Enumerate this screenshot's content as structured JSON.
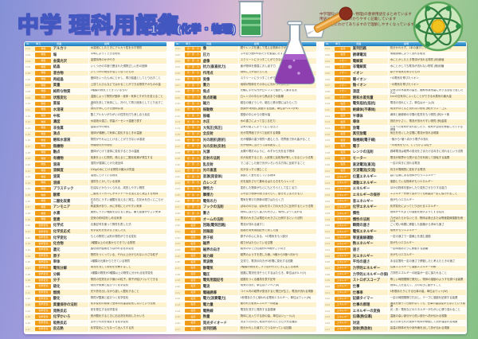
{
  "header": {
    "title": "中学 理科用語集",
    "subtitle": "1分野(化学・物理)",
    "blurb_lines": [
      "中学理科1分野(化学・物理)の重要用語をまとめています",
      "用語とその説明をわかりやすく記載しています",
      "単元ごとにわけてありますので理解しやすくなっています"
    ]
  },
  "illustrations": [
    "beaker-green-liquid-icon",
    "erlenmeyer-flask-purple-icon",
    "dropper-syringe-icon",
    "atom-model-icon"
  ],
  "colors": {
    "accent_blue": "#1b79bd",
    "badge_orange": "#f09c17",
    "row_cream": "#fdf2cc",
    "title_stroke": "#4257bf",
    "blurb_text": "#7c3226"
  },
  "table": {
    "col_header": [
      "№",
      "単元",
      "用語",
      "説明"
    ],
    "columns": [
      {
        "rows": [
          [
            "1-01",
            "物質",
            "アルカリ",
            "水溶液にしたときにアルカリ性を示す物質"
          ],
          [
            "1-02",
            "物質",
            "塩",
            "中和によってできる物質"
          ],
          [
            "1-03",
            "物質",
            "金属光沢",
            "金属特有のかがやき"
          ],
          [
            "1-04",
            "物質",
            "結晶",
            "いくつかの平面で囲まれた規則正しい形の固体"
          ],
          [
            "1-05",
            "物質",
            "混合物",
            "いくつかの物質が混じり合ったもの"
          ],
          [
            "1-06",
            "物質",
            "再結晶",
            "固体をいったん水にとかし、再び結晶としてとり出すこと"
          ],
          [
            "1-07",
            "物質",
            "質量",
            "上皿てんびんなどではかることができる物質そのものの量"
          ],
          [
            "1-08",
            "物質",
            "純粋な物質",
            "1種類の物質でできているもの"
          ],
          [
            "1-09",
            "物質",
            "状態変化",
            "温度によって物質が固体・液体・気体とすがたを変えること"
          ],
          [
            "1-10",
            "物質",
            "蒸留",
            "液体を熱して気体にし、冷やして再び液体としてとり出すこと"
          ],
          [
            "1-11",
            "物質",
            "水溶液",
            "物質が水にとけた透明な液"
          ],
          [
            "1-12",
            "物質",
            "中和",
            "酸とアルカリがたがいの性質を打ち消し合う反応"
          ],
          [
            "1-13",
            "物質",
            "濃度",
            "水溶液の濃さ。質量パーセント濃度で表す"
          ],
          [
            "1-14",
            "物質",
            "非金属",
            "金属以外の物質"
          ],
          [
            "1-15",
            "物質",
            "沸点",
            "液体が沸騰して気体に変化するときの温度"
          ],
          [
            "1-16",
            "物質",
            "飽和水溶液",
            "物質がそれ以上とけることができない水溶液"
          ],
          [
            "1-17",
            "物質",
            "無機物",
            "有機物以外の物質"
          ],
          [
            "1-18",
            "物質",
            "融点",
            "固体がとけて液体に変化するときの温度"
          ],
          [
            "1-19",
            "物質",
            "有機物",
            "炭素をふくむ物質。燃えると二酸化炭素が発生する"
          ],
          [
            "1-20",
            "物質",
            "溶液",
            "溶質が溶媒にとけた液全体"
          ],
          [
            "1-21",
            "物質",
            "溶解度",
            "100gの水にとける物質の最大の質量"
          ],
          [
            "1-22",
            "物質",
            "溶質",
            "溶液にとけている物質"
          ],
          [
            "1-23",
            "物質",
            "溶媒",
            "溶質をとかしている液体"
          ],
          [
            "1-24",
            "物質",
            "プラスチック",
            "石油などからつくられる、成形しやすい物質"
          ],
          [
            "1-25",
            "物質",
            "酸素",
            "二酸化マンガンにオキシドールを加えると発生する気体"
          ],
          [
            "1-26",
            "物質",
            "二酸化炭素",
            "石灰石にうすい塩酸を加えると発生。石灰水を白くにごらせる"
          ],
          [
            "1-27",
            "物質",
            "アンモニア",
            "刺激臭があり、水に非常にとけやすい気体"
          ],
          [
            "1-28",
            "物質",
            "水素",
            "亜鉛にうすい塩酸を加えると発生。最も密度が小さい気体"
          ],
          [
            "1-29",
            "物質",
            "窒素",
            "空気の約8割をしめる気体"
          ],
          [
            "1-30",
            "化学変化",
            "化学式",
            "元素記号を使って物質を表した式"
          ],
          [
            "1-31",
            "化学変化",
            "化学反応式",
            "化学変化を化学式で表した式"
          ],
          [
            "1-32",
            "化学変化",
            "化学変化",
            "もとの物質とは別の物質ができる変化"
          ],
          [
            "1-33",
            "化学変化",
            "化合物",
            "2種類以上の元素からできている物質"
          ],
          [
            "1-34",
            "化学変化",
            "還元",
            "酸化物が酸素をうばわれる化学変化"
          ],
          [
            "1-35",
            "化学変化",
            "原子",
            "物質をつくっている、それ以上分けられない小さな粒子"
          ],
          [
            "1-36",
            "化学変化",
            "単体",
            "1種類の元素からできている物質"
          ],
          [
            "1-37",
            "化学変化",
            "電気分解",
            "電流を流して物質を分解すること"
          ],
          [
            "1-38",
            "化学変化",
            "分解",
            "1種類の物質が2種類以上の物質に分かれる化学変化"
          ],
          [
            "1-39",
            "化学変化",
            "分子",
            "物質の性質を示す最小の粒子。原子が結びついてできる"
          ],
          [
            "1-40",
            "化学変化",
            "硫化",
            "物質が硫黄と結びつく化学変化"
          ],
          [
            "1-41",
            "化学変化",
            "燃焼",
            "光や熱を出しながら激しく酸化すること"
          ],
          [
            "1-42",
            "化学変化",
            "酸化",
            "物質が酸素と結びつく化学変化"
          ],
          [
            "1-43",
            "化学変化",
            "質量保存の法則",
            "化学変化の前後で全体の質量は変化しないという法則"
          ],
          [
            "1-44",
            "化学変化",
            "発熱反応",
            "熱を発生する化学変化"
          ],
          [
            "1-45",
            "化学変化",
            "化学かいろ",
            "鉄が酸化するときに出る熱を利用したかいろ"
          ],
          [
            "1-46",
            "化学変化",
            "吸熱反応",
            "まわりの熱を吸収する化学変化"
          ],
          [
            "1-47",
            "化学変化",
            "反応熱",
            "化学変化にともなって出入りする熱"
          ]
        ]
      },
      {
        "rows": [
          [
            "2-01",
            "光・音・力",
            "像",
            "鏡やレンズを通して見える物体のすがた"
          ],
          [
            "2-02",
            "光・音・力",
            "圧力",
            "ふれ合う面1m²あたりを垂直におす力"
          ],
          [
            "2-03",
            "光・音・力",
            "虚像",
            "スクリーンにうつすことができない像"
          ],
          [
            "2-04",
            "光・音・力",
            "抗力(垂直抗力)",
            "面が物体を垂直におし返す力"
          ],
          [
            "2-05",
            "光・音・力",
            "作用点",
            "物体に力がはたらく点"
          ],
          [
            "2-06",
            "光・音・力",
            "実像",
            "スクリーンにうつすことができる像"
          ],
          [
            "2-07",
            "光・音・力",
            "重力",
            "地球が物体をその中心に向かって引く力"
          ],
          [
            "2-08",
            "光・音・力",
            "焦点",
            "光軸に平行な光が凸レンズで屈折して集まる点"
          ],
          [
            "2-09",
            "光・音・力",
            "焦点距離",
            "凸レンズの中心から焦点までの距離"
          ],
          [
            "2-10",
            "光・音・力",
            "磁力",
            "磁石の極どうしや、磁石と鉄の間にはたらく力"
          ],
          [
            "2-11",
            "光・音・力",
            "振動数",
            "音源が1秒間に振動する回数。単位はヘルツ(Hz)"
          ],
          [
            "2-12",
            "光・音・力",
            "振幅",
            "振動の中心からの振れ幅"
          ],
          [
            "2-13",
            "光・音・力",
            "水圧",
            "水の重さによって生じる圧力"
          ],
          [
            "2-14",
            "光・音・力",
            "大気圧(気圧)",
            "空気の重さによって生じる圧力"
          ],
          [
            "2-15",
            "光・音・力",
            "全反射",
            "光が境界面ですべて反射する現象"
          ],
          [
            "2-16",
            "光・音・力",
            "光の屈折(屈折)",
            "光が種類の違う物質へ進むとき、境界面で折れ曲がること"
          ],
          [
            "2-17",
            "光・音・力",
            "光の反射(反射)",
            "光が物体に当たってはね返ること"
          ],
          [
            "2-18",
            "光・音・力",
            "光源",
            "太陽や電灯のように、みずから光を出す物体"
          ],
          [
            "2-19",
            "光・音・力",
            "反射の法則",
            "光が反射するとき、入射角と反射角が等しくなるという法則"
          ],
          [
            "2-20",
            "光・音・力",
            "乱反射",
            "でこぼこした面で光がいろいろな方向に反射すること"
          ],
          [
            "2-21",
            "光・音・力",
            "光の直進",
            "光がまっすぐ進むこと"
          ],
          [
            "2-22",
            "光・音・力",
            "音源(発音体)",
            "振動して音を出している物体"
          ],
          [
            "2-23",
            "光・音・力",
            "凸レンズ",
            "光を屈折させて集めるはたらきをもつレンズ"
          ],
          [
            "2-24",
            "光・音・力",
            "弾性力",
            "変形した物体がもとにもどろうとして生じる力"
          ],
          [
            "2-25",
            "光・音・力",
            "摩擦力",
            "ふれ合う物体の間ではたらく、動きをさまたげる力"
          ],
          [
            "2-26",
            "光・音・力",
            "電気の力",
            "電気を帯びた物体の間ではたらく力"
          ],
          [
            "2-27",
            "光・音・力",
            "フックの法則",
            "ばねののびは、ばねを引く力の大きさに比例するという法則"
          ],
          [
            "2-28",
            "光・音・力",
            "重さ",
            "物体にはたらく重力の大きさ。場所によって変わる"
          ],
          [
            "2-29",
            "電流",
            "オームの法則",
            "電流の大きさは電圧の大きさに比例するという法則"
          ],
          [
            "2-30",
            "電流",
            "回路(電気回路)",
            "電流が流れる道すじ"
          ],
          [
            "2-31",
            "電流",
            "回路図",
            "回路を電気用図記号で表した図"
          ],
          [
            "2-32",
            "電流",
            "原子核",
            "原子の中心にある、+の電気をもつ部分"
          ],
          [
            "2-33",
            "電流",
            "磁界",
            "磁力がはたらいている空間"
          ],
          [
            "2-34",
            "電流",
            "磁界の向き",
            "磁界の中で方位磁針のN極がさす向き"
          ],
          [
            "2-35",
            "電流",
            "磁力線",
            "磁界のようすを表した線。N極からS極へ向かう"
          ],
          [
            "2-36",
            "電流",
            "周波数",
            "交流で、電流の向きが1秒間に変化する回数"
          ],
          [
            "2-37",
            "電流",
            "静電気",
            "2種類の物質をこすり合わせたときに生じる電気"
          ],
          [
            "2-38",
            "電流",
            "電圧",
            "回路に電流を流そうとするはたらき。単位はボルト(V)"
          ],
          [
            "2-39",
            "電流",
            "電気用図記号",
            "回路をつくる器具を表す記号"
          ],
          [
            "2-40",
            "電流",
            "電流",
            "電気の流れ。単位はアンペア(A)"
          ],
          [
            "2-41",
            "電流",
            "電磁誘導",
            "コイル内の磁界が変化すると電圧が生じ、電流が流れる現象"
          ],
          [
            "2-42",
            "電流",
            "電力(消費電力)",
            "1秒間あたりに使われる電気エネルギー。単位はワット(W)"
          ],
          [
            "2-43",
            "電流",
            "電力量",
            "使われた電気エネルギーの総量"
          ],
          [
            "2-44",
            "電流",
            "電熱線",
            "電流を流すと発熱する金属線"
          ],
          [
            "2-45",
            "電流",
            "熱量",
            "物体に出入りする熱の量。単位はジュール(J)"
          ],
          [
            "2-46",
            "電流",
            "発光ダイオード",
            "決まった向きに電流が流れたときだけ光る器具"
          ],
          [
            "2-47",
            "電流",
            "並列回路",
            "枝分かれした道すじでつながっている回路"
          ]
        ]
      },
      {
        "rows": [
          [
            "3-01",
            "電流",
            "直列回路",
            "枝分かれせず、1本の道すじでつながっている回路"
          ],
          [
            "3-02",
            "電流",
            "誘導電流",
            "電磁誘導によって流れる電流"
          ],
          [
            "3-03",
            "イオン",
            "電解質",
            "水にとかしたとき電流が流れる物質 (例)食塩"
          ],
          [
            "3-04",
            "イオン",
            "非電解質",
            "水にとかしても電流が流れない物質 (例)砂糖"
          ],
          [
            "3-05",
            "イオン",
            "イオン",
            "原子が電気を帯びたもの"
          ],
          [
            "3-06",
            "イオン",
            "陽イオン",
            "+の電気を帯びたイオン"
          ],
          [
            "3-07",
            "イオン",
            "陰イオン",
            "−の電気を帯びたイオン"
          ],
          [
            "3-08",
            "イオン",
            "湿度",
            "空気中の水蒸気の量を、飽和水蒸気量に対する割合で表したもの"
          ],
          [
            "3-09",
            "イオン",
            "飽和水蒸気量",
            "1m³の空気中にふくむことができる水蒸気の最大量"
          ],
          [
            "3-10",
            "電流",
            "電気抵抗(抵抗)",
            "電流の流れにくさ。単位はオーム(Ω)"
          ],
          [
            "3-11",
            "電流",
            "絶縁体(不導体)",
            "電流がほとんど流れない物質 (例)ガラス・ゴム"
          ],
          [
            "3-12",
            "電流",
            "半導体",
            "導体と絶縁体の中間の性質をもつ物質 (例)ケイ素"
          ],
          [
            "3-13",
            "電流",
            "導体",
            "抵抗が小さく、電流が流れやすい物質 (例)金属"
          ],
          [
            "3-14",
            "電流",
            "放電",
            "たまった電気が流れ出したり、電気が空間を移動したりする現象"
          ],
          [
            "3-15",
            "電流",
            "真空放電",
            "気圧を低くした空間に電流が流れる現象"
          ],
          [
            "3-16",
            "電流",
            "陰極線(電子線)",
            "−極から+極へ向かう電子の流れ"
          ],
          [
            "3-17",
            "電流",
            "電子",
            "−の電気をもつ、とても小さな粒子"
          ],
          [
            "3-18",
            "電流",
            "レンツの法則",
            "誘導電流は磁界の変化をさまたげる向きに流れるという法則"
          ],
          [
            "3-19",
            "電流",
            "モーター",
            "電流が磁界から受ける力を利用して回転する装置"
          ],
          [
            "3-20",
            "電流",
            "直流電流(直流)",
            "一定の向きに流れる電流"
          ],
          [
            "3-21",
            "電流",
            "交流電流(交流)",
            "向きが周期的に変化する電流"
          ],
          [
            "3-22",
            "エネルギー",
            "位置エネルギー",
            "高い位置にある物体がもつエネルギー"
          ],
          [
            "3-23",
            "エネルギー",
            "運動エネルギー",
            "運動している物体がもつエネルギー"
          ],
          [
            "3-24",
            "エネルギー",
            "エネルギー",
            "ほかの物体を動かしたり変形させたりする能力"
          ],
          [
            "3-25",
            "エネルギー",
            "エネルギーの保存",
            "エネルギーが移り変わっても総量は一定に保たれること"
          ],
          [
            "3-26",
            "エネルギー",
            "音エネルギー",
            "音がもつエネルギー"
          ],
          [
            "3-27",
            "エネルギー",
            "化学エネルギー",
            "化学変化によってとり出せるエネルギー"
          ],
          [
            "3-28",
            "エネルギー",
            "慣性",
            "物体がそれまでの運動を続けようとする性質"
          ],
          [
            "3-29",
            "エネルギー",
            "慣性の法則",
            "力がはたらかないとき、物体は静止または等速直線運動を続ける"
          ],
          [
            "3-30",
            "エネルギー",
            "瞬間の速さ",
            "ごく短い時間に移動した距離から求めた速さ"
          ],
          [
            "3-31",
            "エネルギー",
            "電気エネルギー",
            "電気がもつエネルギー"
          ],
          [
            "3-32",
            "エネルギー",
            "等速直線運動",
            "一定の速さで一直線上を進む運動"
          ],
          [
            "3-33",
            "エネルギー",
            "熱エネルギー",
            "熱がもつエネルギー"
          ],
          [
            "3-34",
            "エネルギー",
            "速さ",
            "一定時間あたりに移動する距離"
          ],
          [
            "3-35",
            "エネルギー",
            "光エネルギー",
            "光がもつエネルギー"
          ],
          [
            "3-36",
            "エネルギー",
            "平均の速さ",
            "ある区間を一定の速さで移動したと考えたときの速さ"
          ],
          [
            "3-37",
            "エネルギー",
            "力学的エネルギー",
            "位置エネルギーと運動エネルギーの和"
          ],
          [
            "3-38",
            "エネルギー",
            "力学的エネルギーの保存",
            "力学的エネルギーの総量が一定に保たれること"
          ],
          [
            "3-39",
            "エネルギー",
            "ストロボスコープ",
            "等しい時間間隔で発光し、物体の運動のようすを調べる装置"
          ],
          [
            "3-40",
            "エネルギー",
            "仕事",
            "物体に力を加えて、力の向きに動かすこと"
          ],
          [
            "3-41",
            "エネルギー",
            "仕事率",
            "1秒間あたりにする仕事の量。単位はワット(W)"
          ],
          [
            "3-42",
            "エネルギー",
            "記録タイマー",
            "一定の時間間隔で打点し、テープに運動を記録する装置"
          ],
          [
            "3-43",
            "エネルギー",
            "仕事の原理",
            "道具を使っても使わなくても、仕事の量は変わらないという原理"
          ],
          [
            "3-44",
            "エネルギー",
            "エネルギーの変換",
            "光・熱・電気などのエネルギーがたがいに移り変わること"
          ],
          [
            "3-45",
            "エネルギー",
            "伝導(熱伝導)",
            "温度の高い部分から低い部分へ熱が伝わる現象"
          ],
          [
            "3-46",
            "エネルギー",
            "対流",
            "あたためられた液体や気体が移動して熱が運ばれる現象"
          ],
          [
            "3-47",
            "エネルギー",
            "放射(熱放射)",
            "高温の物体が光や赤外線を出して熱が伝わる現象"
          ]
        ]
      }
    ]
  }
}
